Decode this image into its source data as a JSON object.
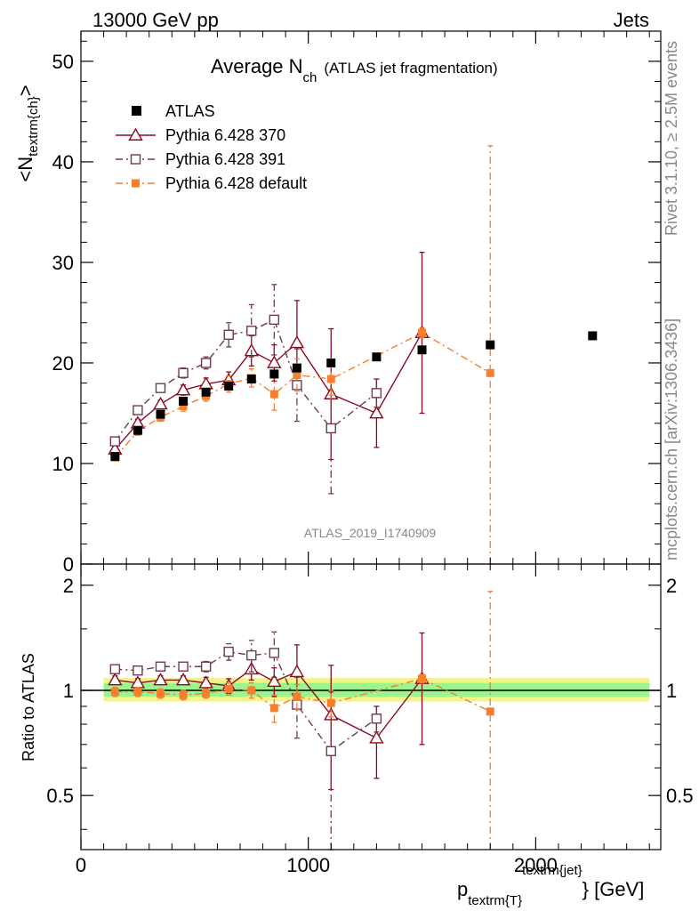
{
  "header": {
    "left": "13000 GeV pp",
    "right": "Jets"
  },
  "side_labels": {
    "rivet": "Rivet 3.1.10, ≥ 2.5M events",
    "mcplots": "mcplots.cern.ch [arXiv:1306.3436]"
  },
  "chart_data": {
    "type": "scatter",
    "title_main": "Average N",
    "title_sub": "ch",
    "title_paren": "(ATLAS jet fragmentation)",
    "watermark": "ATLAS_2019_I1740909",
    "ylabel_main": "<N",
    "ylabel_sub": "textrm{ch}",
    "ylabel_end": ">",
    "ratio_ylabel": "Ratio to ATLAS",
    "xlabel_main": "p",
    "xlabel_sub": "textrm{T}",
    "xlabel_sup": "textrm{jet}",
    "xlabel_end": "} [GeV]",
    "xlim": [
      0,
      2550
    ],
    "ylim": [
      0,
      53
    ],
    "ratio_ylim": [
      0.35,
      2.3
    ],
    "x_ticks": [
      0,
      1000,
      2000
    ],
    "x_tick_labels": [
      "0",
      "1000",
      "2000"
    ],
    "y_ticks": [
      0,
      10,
      20,
      30,
      40,
      50
    ],
    "y_tick_labels": [
      "0",
      "10",
      "20",
      "30",
      "40",
      "50"
    ],
    "ratio_y_ticks": [
      0.5,
      1,
      2
    ],
    "ratio_y_tick_labels": [
      "0.5",
      "1",
      "2"
    ],
    "legend_position": "top-left",
    "data": {
      "name": "ATLAS",
      "color": "#000000",
      "x": [
        150,
        250,
        350,
        450,
        550,
        650,
        750,
        850,
        950,
        1100,
        1300,
        1500,
        1800,
        2250
      ],
      "y": [
        10.7,
        13.3,
        14.9,
        16.2,
        17.1,
        17.7,
        18.4,
        18.9,
        19.5,
        20.0,
        20.6,
        21.3,
        21.8,
        22.7
      ]
    },
    "series": [
      {
        "name": "Pythia 6.428 370",
        "color": "#8b0a1e",
        "marker": "triangle-open",
        "dash": "",
        "x": [
          150,
          250,
          350,
          450,
          550,
          650,
          750,
          850,
          950,
          1100,
          1300,
          1500
        ],
        "y": [
          11.4,
          14.0,
          15.9,
          17.3,
          17.9,
          18.3,
          21.2,
          20.0,
          22.0,
          16.9,
          15.0,
          23.0
        ],
        "err": [
          0.3,
          0.4,
          0.4,
          0.5,
          0.6,
          0.8,
          1.5,
          1.8,
          4.2,
          6.5,
          3.4,
          8.0
        ],
        "ratio": [
          1.07,
          1.05,
          1.07,
          1.07,
          1.05,
          1.03,
          1.15,
          1.06,
          1.13,
          0.85,
          0.73,
          1.08
        ],
        "ratio_err": [
          0.03,
          0.03,
          0.03,
          0.03,
          0.04,
          0.05,
          0.08,
          0.1,
          0.22,
          0.33,
          0.17,
          0.38
        ]
      },
      {
        "name": "Pythia 6.428 391",
        "color": "#6e3b52",
        "marker": "square-open",
        "dash": "8,4,2,4",
        "x": [
          150,
          250,
          350,
          450,
          550,
          650,
          750,
          850,
          950,
          1100,
          1300
        ],
        "y": [
          12.2,
          15.3,
          17.5,
          19.0,
          20.0,
          22.8,
          23.2,
          24.3,
          17.8,
          13.5,
          17.0
        ],
        "err": [
          0.3,
          0.4,
          0.4,
          0.5,
          0.6,
          1.2,
          2.6,
          3.5,
          3.6,
          6.5,
          1.4
        ],
        "ratio": [
          1.15,
          1.14,
          1.17,
          1.17,
          1.17,
          1.29,
          1.26,
          1.28,
          0.91,
          0.67,
          0.83
        ],
        "ratio_err": [
          0.03,
          0.03,
          0.03,
          0.03,
          0.04,
          0.07,
          0.13,
          0.19,
          0.18,
          0.32,
          0.07
        ]
      },
      {
        "name": "Pythia 6.428 default",
        "color": "#f57e2f",
        "marker": "square-filled",
        "dash": "8,4,2,4",
        "x": [
          150,
          250,
          350,
          450,
          550,
          650,
          750,
          850,
          950,
          1100,
          1500,
          1800
        ],
        "y": [
          10.6,
          13.2,
          14.6,
          15.7,
          16.7,
          17.9,
          18.5,
          16.9,
          18.8,
          18.4,
          23.0,
          19.0
        ],
        "err": [
          0.3,
          0.4,
          0.4,
          0.5,
          0.5,
          0.8,
          0.9,
          1.6,
          1.6,
          1.6,
          0.5,
          22.6
        ],
        "ratio": [
          0.99,
          0.99,
          0.98,
          0.97,
          0.98,
          1.01,
          1.0,
          0.89,
          0.96,
          0.92,
          1.08,
          0.87
        ],
        "ratio_err": [
          0.03,
          0.03,
          0.03,
          0.03,
          0.03,
          0.04,
          0.05,
          0.08,
          0.08,
          0.08,
          0.03,
          1.05
        ]
      }
    ]
  }
}
